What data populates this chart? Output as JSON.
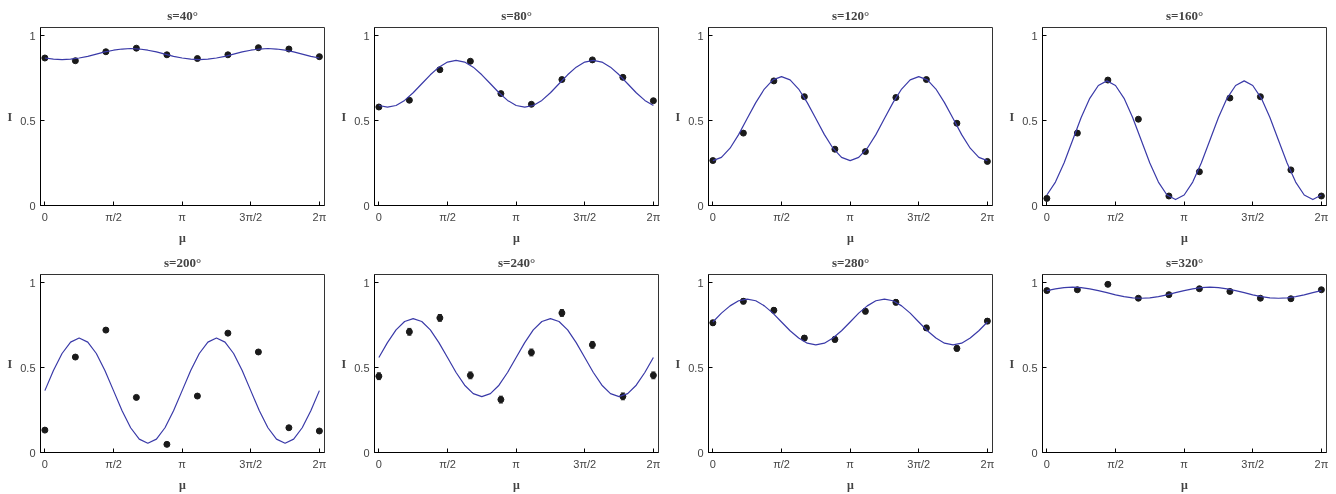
{
  "chart_data": [
    {
      "type": "scatter",
      "title": "s=40°",
      "xlabel": "μ",
      "ylabel": "I",
      "xlim": [
        -0.1,
        6.4
      ],
      "ylim": [
        0,
        1.05
      ],
      "xticks": [
        {
          "value": 0,
          "label": "0"
        },
        {
          "value": 1.571,
          "label": "π/2"
        },
        {
          "value": 3.142,
          "label": "π"
        },
        {
          "value": 4.712,
          "label": "3π/2"
        },
        {
          "value": 6.283,
          "label": "2π"
        }
      ],
      "yticks": [
        0,
        0.5,
        1
      ],
      "grid": false,
      "series": [
        {
          "marker": "circle",
          "color": "#1a1a1a",
          "x": [
            0,
            0.698,
            1.396,
            2.094,
            2.793,
            3.491,
            4.189,
            4.887,
            5.585,
            6.283
          ],
          "values": [
            0.87,
            0.854,
            0.907,
            0.928,
            0.889,
            0.867,
            0.889,
            0.931,
            0.923,
            0.878
          ],
          "errors": [
            0.005,
            0.005,
            0.005,
            0.005,
            0.005,
            0.005,
            0.005,
            0.005,
            0.005,
            0.005
          ]
        },
        {
          "type": "line",
          "color": "#3a3aa8",
          "x": [
            0,
            0.196,
            0.393,
            0.589,
            0.785,
            0.982,
            1.178,
            1.374,
            1.571,
            1.767,
            1.963,
            2.16,
            2.356,
            2.553,
            2.749,
            2.945,
            3.142,
            3.338,
            3.534,
            3.731,
            3.927,
            4.123,
            4.32,
            4.516,
            4.712,
            4.909,
            5.105,
            5.301,
            5.498,
            5.694,
            5.89,
            6.087,
            6.283
          ],
          "values": [
            0.87,
            0.863,
            0.86,
            0.863,
            0.87,
            0.88,
            0.893,
            0.906,
            0.916,
            0.923,
            0.926,
            0.923,
            0.916,
            0.906,
            0.893,
            0.88,
            0.87,
            0.863,
            0.86,
            0.863,
            0.87,
            0.88,
            0.893,
            0.906,
            0.916,
            0.923,
            0.926,
            0.923,
            0.916,
            0.906,
            0.893,
            0.88,
            0.87
          ]
        }
      ]
    },
    {
      "type": "scatter",
      "title": "s=80°",
      "xlabel": "μ",
      "ylabel": "I",
      "xlim": [
        -0.1,
        6.4
      ],
      "ylim": [
        0,
        1.05
      ],
      "xticks": [
        {
          "value": 0,
          "label": "0"
        },
        {
          "value": 1.571,
          "label": "π/2"
        },
        {
          "value": 3.142,
          "label": "π"
        },
        {
          "value": 4.712,
          "label": "3π/2"
        },
        {
          "value": 6.283,
          "label": "2π"
        }
      ],
      "yticks": [
        0,
        0.5,
        1
      ],
      "grid": false,
      "series": [
        {
          "marker": "circle",
          "color": "#1a1a1a",
          "x": [
            0,
            0.698,
            1.396,
            2.094,
            2.793,
            3.491,
            4.189,
            4.887,
            5.585,
            6.283
          ],
          "values": [
            0.581,
            0.621,
            0.801,
            0.851,
            0.66,
            0.597,
            0.743,
            0.859,
            0.756,
            0.618
          ],
          "errors": [
            0.005,
            0.005,
            0.005,
            0.005,
            0.005,
            0.005,
            0.005,
            0.005,
            0.005,
            0.005
          ]
        },
        {
          "type": "line",
          "color": "#3a3aa8",
          "x": [
            0,
            0.196,
            0.393,
            0.589,
            0.785,
            0.982,
            1.178,
            1.374,
            1.571,
            1.767,
            1.963,
            2.16,
            2.356,
            2.553,
            2.749,
            2.945,
            3.142,
            3.338,
            3.534,
            3.731,
            3.927,
            4.123,
            4.32,
            4.516,
            4.712,
            4.909,
            5.105,
            5.301,
            5.498,
            5.694,
            5.89,
            6.087,
            6.283
          ],
          "values": [
            0.59,
            0.58,
            0.59,
            0.62,
            0.665,
            0.718,
            0.771,
            0.816,
            0.846,
            0.856,
            0.846,
            0.816,
            0.771,
            0.718,
            0.665,
            0.62,
            0.59,
            0.58,
            0.59,
            0.62,
            0.665,
            0.718,
            0.771,
            0.816,
            0.846,
            0.856,
            0.846,
            0.816,
            0.771,
            0.718,
            0.665,
            0.62,
            0.59
          ]
        }
      ]
    },
    {
      "type": "scatter",
      "title": "s=120°",
      "xlabel": "μ",
      "ylabel": "I",
      "xlim": [
        -0.1,
        6.4
      ],
      "ylim": [
        0,
        1.05
      ],
      "xticks": [
        {
          "value": 0,
          "label": "0"
        },
        {
          "value": 1.571,
          "label": "π/2"
        },
        {
          "value": 3.142,
          "label": "π"
        },
        {
          "value": 4.712,
          "label": "3π/2"
        },
        {
          "value": 6.283,
          "label": "2π"
        }
      ],
      "yticks": [
        0,
        0.5,
        1
      ],
      "grid": false,
      "series": [
        {
          "marker": "circle",
          "color": "#1a1a1a",
          "x": [
            0,
            0.698,
            1.396,
            2.094,
            2.793,
            3.491,
            4.189,
            4.887,
            5.585,
            6.283
          ],
          "values": [
            0.265,
            0.427,
            0.735,
            0.642,
            0.332,
            0.318,
            0.637,
            0.743,
            0.485,
            0.26
          ],
          "errors": [
            0.005,
            0.005,
            0.005,
            0.005,
            0.005,
            0.005,
            0.005,
            0.005,
            0.005,
            0.005
          ]
        },
        {
          "type": "line",
          "color": "#3a3aa8",
          "x": [
            0,
            0.196,
            0.393,
            0.589,
            0.785,
            0.982,
            1.178,
            1.374,
            1.571,
            1.767,
            1.963,
            2.16,
            2.356,
            2.553,
            2.749,
            2.945,
            3.142,
            3.338,
            3.534,
            3.731,
            3.927,
            4.123,
            4.32,
            4.516,
            4.712,
            4.909,
            5.105,
            5.301,
            5.498,
            5.694,
            5.89,
            6.087,
            6.283
          ],
          "values": [
            0.265,
            0.284,
            0.338,
            0.418,
            0.513,
            0.607,
            0.687,
            0.741,
            0.76,
            0.741,
            0.687,
            0.607,
            0.513,
            0.418,
            0.338,
            0.284,
            0.265,
            0.284,
            0.338,
            0.418,
            0.513,
            0.607,
            0.687,
            0.741,
            0.76,
            0.741,
            0.687,
            0.607,
            0.513,
            0.418,
            0.338,
            0.284,
            0.265
          ]
        }
      ]
    },
    {
      "type": "scatter",
      "title": "s=160°",
      "xlabel": "μ",
      "ylabel": "I",
      "xlim": [
        -0.1,
        6.4
      ],
      "ylim": [
        0,
        1.05
      ],
      "xticks": [
        {
          "value": 0,
          "label": "0"
        },
        {
          "value": 1.571,
          "label": "π/2"
        },
        {
          "value": 3.142,
          "label": "π"
        },
        {
          "value": 4.712,
          "label": "3π/2"
        },
        {
          "value": 6.283,
          "label": "2π"
        }
      ],
      "yticks": [
        0,
        0.5,
        1
      ],
      "grid": false,
      "series": [
        {
          "marker": "circle",
          "color": "#1a1a1a",
          "x": [
            0,
            0.698,
            1.396,
            2.094,
            2.793,
            3.491,
            4.189,
            4.887,
            5.585,
            6.283
          ],
          "values": [
            0.042,
            0.427,
            0.74,
            0.509,
            0.056,
            0.199,
            0.634,
            0.642,
            0.21,
            0.056
          ],
          "errors": [
            0.005,
            0.005,
            0.005,
            0.005,
            0.005,
            0.005,
            0.005,
            0.005,
            0.005,
            0.005
          ]
        },
        {
          "type": "line",
          "color": "#3a3aa8",
          "x": [
            0,
            0.196,
            0.393,
            0.589,
            0.785,
            0.982,
            1.178,
            1.374,
            1.571,
            1.767,
            1.963,
            2.16,
            2.356,
            2.553,
            2.749,
            2.945,
            3.142,
            3.338,
            3.534,
            3.731,
            3.927,
            4.123,
            4.32,
            4.516,
            4.712,
            4.909,
            5.105,
            5.301,
            5.498,
            5.694,
            5.89,
            6.087,
            6.283
          ],
          "values": [
            0.062,
            0.138,
            0.251,
            0.385,
            0.519,
            0.632,
            0.708,
            0.735,
            0.708,
            0.632,
            0.519,
            0.385,
            0.251,
            0.138,
            0.062,
            0.035,
            0.062,
            0.138,
            0.251,
            0.385,
            0.519,
            0.632,
            0.708,
            0.735,
            0.708,
            0.632,
            0.519,
            0.385,
            0.251,
            0.138,
            0.062,
            0.035,
            0.062
          ]
        }
      ]
    },
    {
      "type": "scatter",
      "title": "s=200°",
      "xlabel": "μ",
      "ylabel": "I",
      "xlim": [
        -0.1,
        6.4
      ],
      "ylim": [
        0,
        1.05
      ],
      "xticks": [
        {
          "value": 0,
          "label": "0"
        },
        {
          "value": 1.571,
          "label": "π/2"
        },
        {
          "value": 3.142,
          "label": "π"
        },
        {
          "value": 4.712,
          "label": "3π/2"
        },
        {
          "value": 6.283,
          "label": "2π"
        }
      ],
      "yticks": [
        0,
        0.5,
        1
      ],
      "grid": false,
      "series": [
        {
          "marker": "circle",
          "color": "#1a1a1a",
          "x": [
            0,
            0.698,
            1.396,
            2.094,
            2.793,
            3.491,
            4.189,
            4.887,
            5.585,
            6.283
          ],
          "values": [
            0.132,
            0.563,
            0.722,
            0.325,
            0.048,
            0.333,
            0.704,
            0.593,
            0.146,
            0.127
          ],
          "errors": [
            0.005,
            0.005,
            0.005,
            0.005,
            0.005,
            0.005,
            0.005,
            0.005,
            0.005,
            0.005
          ]
        },
        {
          "type": "line",
          "color": "#3a3aa8",
          "x": [
            0,
            0.196,
            0.393,
            0.589,
            0.785,
            0.982,
            1.178,
            1.374,
            1.571,
            1.767,
            1.963,
            2.16,
            2.356,
            2.553,
            2.749,
            2.945,
            3.142,
            3.338,
            3.534,
            3.731,
            3.927,
            4.123,
            4.32,
            4.516,
            4.712,
            4.909,
            5.105,
            5.301,
            5.498,
            5.694,
            5.89,
            6.087,
            6.283
          ],
          "values": [
            0.365,
            0.484,
            0.584,
            0.651,
            0.675,
            0.651,
            0.584,
            0.484,
            0.365,
            0.246,
            0.146,
            0.079,
            0.055,
            0.079,
            0.146,
            0.246,
            0.365,
            0.484,
            0.584,
            0.651,
            0.675,
            0.651,
            0.584,
            0.484,
            0.365,
            0.246,
            0.146,
            0.079,
            0.055,
            0.079,
            0.146,
            0.246,
            0.365
          ]
        }
      ]
    },
    {
      "type": "scatter",
      "title": "s=240°",
      "xlabel": "μ",
      "ylabel": "I",
      "xlim": [
        -0.1,
        6.4
      ],
      "ylim": [
        0,
        1.05
      ],
      "xticks": [
        {
          "value": 0,
          "label": "0"
        },
        {
          "value": 1.571,
          "label": "π/2"
        },
        {
          "value": 3.142,
          "label": "π"
        },
        {
          "value": 4.712,
          "label": "3π/2"
        },
        {
          "value": 6.283,
          "label": "2π"
        }
      ],
      "yticks": [
        0,
        0.5,
        1
      ],
      "grid": false,
      "series": [
        {
          "marker": "circle",
          "color": "#1a1a1a",
          "x": [
            0,
            0.698,
            1.396,
            2.094,
            2.793,
            3.491,
            4.189,
            4.887,
            5.585,
            6.283
          ],
          "values": [
            0.45,
            0.712,
            0.794,
            0.455,
            0.312,
            0.59,
            0.823,
            0.635,
            0.331,
            0.455
          ],
          "errors": [
            0.02,
            0.02,
            0.02,
            0.02,
            0.02,
            0.02,
            0.02,
            0.02,
            0.02,
            0.02
          ]
        },
        {
          "type": "line",
          "color": "#3a3aa8",
          "x": [
            0,
            0.196,
            0.393,
            0.589,
            0.785,
            0.982,
            1.178,
            1.374,
            1.571,
            1.767,
            1.963,
            2.16,
            2.356,
            2.553,
            2.749,
            2.945,
            3.142,
            3.338,
            3.534,
            3.731,
            3.927,
            4.123,
            4.32,
            4.516,
            4.712,
            4.909,
            5.105,
            5.301,
            5.498,
            5.694,
            5.89,
            6.087,
            6.283
          ],
          "values": [
            0.56,
            0.648,
            0.723,
            0.773,
            0.79,
            0.773,
            0.723,
            0.648,
            0.56,
            0.472,
            0.397,
            0.347,
            0.33,
            0.347,
            0.397,
            0.472,
            0.56,
            0.648,
            0.723,
            0.773,
            0.79,
            0.773,
            0.723,
            0.648,
            0.56,
            0.472,
            0.397,
            0.347,
            0.33,
            0.347,
            0.397,
            0.472,
            0.56
          ]
        }
      ]
    },
    {
      "type": "scatter",
      "title": "s=280°",
      "xlabel": "μ",
      "ylabel": "I",
      "xlim": [
        -0.1,
        6.4
      ],
      "ylim": [
        0,
        1.05
      ],
      "xticks": [
        {
          "value": 0,
          "label": "0"
        },
        {
          "value": 1.571,
          "label": "π/2"
        },
        {
          "value": 3.142,
          "label": "π"
        },
        {
          "value": 4.712,
          "label": "3π/2"
        },
        {
          "value": 6.283,
          "label": "2π"
        }
      ],
      "yticks": [
        0,
        0.5,
        1
      ],
      "grid": false,
      "series": [
        {
          "marker": "circle",
          "color": "#1a1a1a",
          "x": [
            0,
            0.698,
            1.396,
            2.094,
            2.793,
            3.491,
            4.189,
            4.887,
            5.585,
            6.283
          ],
          "values": [
            0.765,
            0.892,
            0.839,
            0.675,
            0.667,
            0.833,
            0.886,
            0.735,
            0.614,
            0.775
          ],
          "errors": [
            0.015,
            0.015,
            0.015,
            0.015,
            0.015,
            0.015,
            0.015,
            0.015,
            0.015,
            0.015
          ]
        },
        {
          "type": "line",
          "color": "#3a3aa8",
          "x": [
            0,
            0.196,
            0.393,
            0.589,
            0.785,
            0.982,
            1.178,
            1.374,
            1.571,
            1.767,
            1.963,
            2.16,
            2.356,
            2.553,
            2.749,
            2.945,
            3.142,
            3.338,
            3.534,
            3.731,
            3.927,
            4.123,
            4.32,
            4.516,
            4.712,
            4.909,
            5.105,
            5.301,
            5.498,
            5.694,
            5.89,
            6.087,
            6.283
          ],
          "values": [
            0.77,
            0.822,
            0.865,
            0.895,
            0.905,
            0.895,
            0.865,
            0.822,
            0.77,
            0.718,
            0.675,
            0.645,
            0.635,
            0.645,
            0.675,
            0.718,
            0.77,
            0.822,
            0.865,
            0.895,
            0.905,
            0.895,
            0.865,
            0.822,
            0.77,
            0.718,
            0.675,
            0.645,
            0.635,
            0.645,
            0.675,
            0.718,
            0.77
          ]
        }
      ]
    },
    {
      "type": "scatter",
      "title": "s=320°",
      "xlabel": "μ",
      "ylabel": "I",
      "xlim": [
        -0.1,
        6.4
      ],
      "ylim": [
        0,
        1.05
      ],
      "xticks": [
        {
          "value": 0,
          "label": "0"
        },
        {
          "value": 1.571,
          "label": "π/2"
        },
        {
          "value": 3.142,
          "label": "π"
        },
        {
          "value": 4.712,
          "label": "3π/2"
        },
        {
          "value": 6.283,
          "label": "2π"
        }
      ],
      "yticks": [
        0,
        0.5,
        1
      ],
      "grid": false,
      "series": [
        {
          "marker": "circle",
          "color": "#1a1a1a",
          "x": [
            0,
            0.698,
            1.396,
            2.094,
            2.793,
            3.491,
            4.189,
            4.887,
            5.585,
            6.283
          ],
          "values": [
            0.955,
            0.96,
            0.992,
            0.91,
            0.931,
            0.966,
            0.95,
            0.91,
            0.907,
            0.96
          ],
          "errors": [
            0.005,
            0.005,
            0.005,
            0.005,
            0.005,
            0.005,
            0.005,
            0.005,
            0.005,
            0.005
          ]
        },
        {
          "type": "line",
          "color": "#3a3aa8",
          "x": [
            0,
            0.196,
            0.393,
            0.589,
            0.785,
            0.982,
            1.178,
            1.374,
            1.571,
            1.767,
            1.963,
            2.16,
            2.356,
            2.553,
            2.749,
            2.945,
            3.142,
            3.338,
            3.534,
            3.731,
            3.927,
            4.123,
            4.32,
            4.516,
            4.712,
            4.909,
            5.105,
            5.301,
            5.498,
            5.694,
            5.89,
            6.087,
            6.283
          ],
          "values": [
            0.955,
            0.965,
            0.973,
            0.975,
            0.973,
            0.965,
            0.955,
            0.943,
            0.93,
            0.92,
            0.912,
            0.91,
            0.912,
            0.92,
            0.93,
            0.943,
            0.955,
            0.965,
            0.973,
            0.975,
            0.973,
            0.965,
            0.955,
            0.943,
            0.93,
            0.92,
            0.912,
            0.91,
            0.912,
            0.92,
            0.93,
            0.943,
            0.955
          ]
        }
      ]
    }
  ]
}
